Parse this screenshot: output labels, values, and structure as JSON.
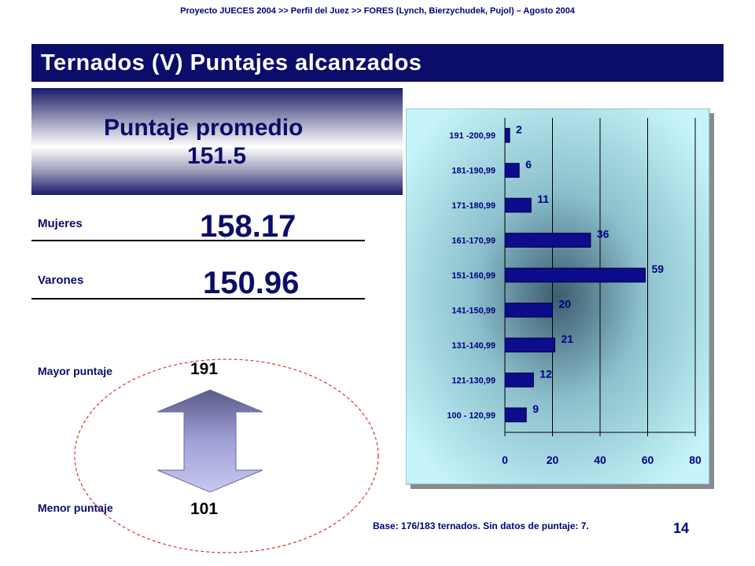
{
  "header": "Proyecto JUECES 2004 >> Perfil del Juez >> FORES  (Lynch, Bierzychudek, Pujol) – Agosto 2004",
  "title": "Ternados (V) Puntajes alcanzados",
  "average": {
    "label": "Puntaje promedio",
    "value": "151.5"
  },
  "mujeres": {
    "label": "Mujeres",
    "value": "158.17"
  },
  "varones": {
    "label": "Varones",
    "value": "150.96"
  },
  "mayor": {
    "label": "Mayor puntaje",
    "value": "191"
  },
  "menor": {
    "label": "Menor puntaje",
    "value": "101"
  },
  "base_note": "Base: 176/183 ternados. Sin datos de puntaje: 7.",
  "page_number": "14",
  "colors": {
    "navy": "#0c0c6a",
    "bar": "#0c0c8c",
    "chart_bg": "#c6f4fa",
    "ellipse": "#e03030",
    "arrow": "#8080c0"
  },
  "chart_data": {
    "type": "bar",
    "orientation": "horizontal",
    "categories": [
      "191 -200,99",
      "181-190,99",
      "171-180,99",
      "161-170,99",
      "151-160,99",
      "141-150,99",
      "131-140,99",
      "121-130,99",
      "100 - 120,99"
    ],
    "values": [
      2,
      6,
      11,
      36,
      59,
      20,
      21,
      12,
      9
    ],
    "xlim": [
      0,
      80
    ],
    "xticks": [
      0,
      20,
      40,
      60,
      80
    ],
    "grid": true
  }
}
